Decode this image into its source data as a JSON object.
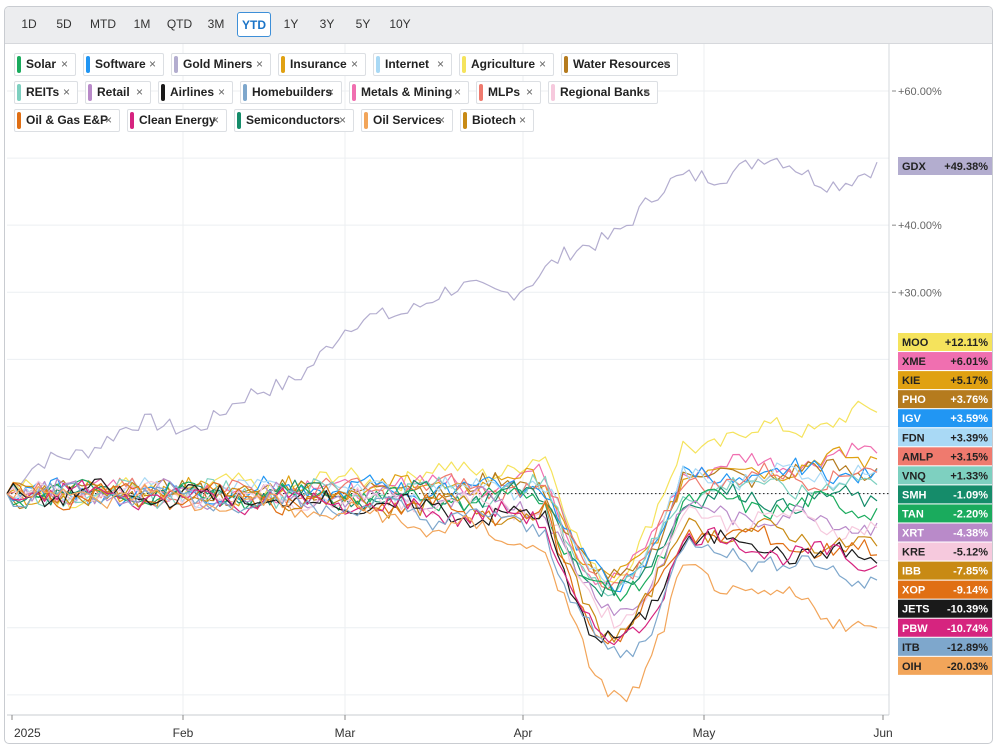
{
  "toolbar": {
    "timeframes": [
      "1D",
      "5D",
      "MTD",
      "1M",
      "QTD",
      "3M",
      "YTD",
      "1Y",
      "3Y",
      "5Y",
      "10Y"
    ],
    "active": "YTD"
  },
  "chart_data": {
    "type": "line",
    "x_labels": [
      "2025",
      "Feb",
      "Mar",
      "Apr",
      "May",
      "Jun"
    ],
    "y_ticks": [
      "+30.00%",
      "+40.00%",
      "+60.00%"
    ],
    "ylim": [
      -33,
      67
    ],
    "grid": true,
    "zero_line": "dotted",
    "filters": [
      {
        "name": "Solar",
        "color": "#1aab5d"
      },
      {
        "name": "Software",
        "color": "#2196f3"
      },
      {
        "name": "Gold Miners",
        "color": "#b3adcf"
      },
      {
        "name": "Insurance",
        "color": "#e0a112"
      },
      {
        "name": "Internet",
        "color": "#a9d9f5"
      },
      {
        "name": "Agriculture",
        "color": "#f5e35c"
      },
      {
        "name": "Water Resources",
        "color": "#b57b1e"
      },
      {
        "name": "REITs",
        "color": "#7ed0c0"
      },
      {
        "name": "Retail",
        "color": "#b98ac9"
      },
      {
        "name": "Airlines",
        "color": "#1a1a1a"
      },
      {
        "name": "Homebuilders",
        "color": "#7ea7cc"
      },
      {
        "name": "Metals & Mining",
        "color": "#f06fb0"
      },
      {
        "name": "MLPs",
        "color": "#ef7a6e"
      },
      {
        "name": "Regional Banks",
        "color": "#f6c9dd"
      },
      {
        "name": "Oil & Gas E&P",
        "color": "#e06f14"
      },
      {
        "name": "Clean Energy",
        "color": "#d6247f"
      },
      {
        "name": "Semiconductors",
        "color": "#158c6a"
      },
      {
        "name": "Oil Services",
        "color": "#f2a55a"
      },
      {
        "name": "Biotech",
        "color": "#c88a14"
      }
    ],
    "series": [
      {
        "ticker": "GDX",
        "label": "+49.38%",
        "value": 49.38,
        "color": "#b3adcf",
        "tag_text": "#222222"
      },
      {
        "ticker": "MOO",
        "label": "+12.11%",
        "value": 12.11,
        "color": "#f5e35c",
        "tag_text": "#222222"
      },
      {
        "ticker": "XME",
        "label": "+6.01%",
        "value": 6.01,
        "color": "#f06fb0",
        "tag_text": "#222222"
      },
      {
        "ticker": "KIE",
        "label": "+5.17%",
        "value": 5.17,
        "color": "#e0a112",
        "tag_text": "#222222"
      },
      {
        "ticker": "PHO",
        "label": "+3.76%",
        "value": 3.76,
        "color": "#b57b1e",
        "tag_text": "#ffffff"
      },
      {
        "ticker": "IGV",
        "label": "+3.59%",
        "value": 3.59,
        "color": "#2196f3",
        "tag_text": "#ffffff"
      },
      {
        "ticker": "FDN",
        "label": "+3.39%",
        "value": 3.39,
        "color": "#a9d9f5",
        "tag_text": "#222222"
      },
      {
        "ticker": "AMLP",
        "label": "+3.15%",
        "value": 3.15,
        "color": "#ef7a6e",
        "tag_text": "#222222"
      },
      {
        "ticker": "VNQ",
        "label": "+1.33%",
        "value": 1.33,
        "color": "#7ed0c0",
        "tag_text": "#222222"
      },
      {
        "ticker": "SMH",
        "label": "-1.09%",
        "value": -1.09,
        "color": "#158c6a",
        "tag_text": "#ffffff"
      },
      {
        "ticker": "TAN",
        "label": "-2.20%",
        "value": -2.2,
        "color": "#1aab5d",
        "tag_text": "#ffffff"
      },
      {
        "ticker": "XRT",
        "label": "-4.38%",
        "value": -4.38,
        "color": "#b98ac9",
        "tag_text": "#ffffff"
      },
      {
        "ticker": "KRE",
        "label": "-5.12%",
        "value": -5.12,
        "color": "#f6c9dd",
        "tag_text": "#222222"
      },
      {
        "ticker": "IBB",
        "label": "-7.85%",
        "value": -7.85,
        "color": "#c88a14",
        "tag_text": "#ffffff"
      },
      {
        "ticker": "XOP",
        "label": "-9.14%",
        "value": -9.14,
        "color": "#e06f14",
        "tag_text": "#ffffff"
      },
      {
        "ticker": "JETS",
        "label": "-10.39%",
        "value": -10.39,
        "color": "#1a1a1a",
        "tag_text": "#ffffff"
      },
      {
        "ticker": "PBW",
        "label": "-10.74%",
        "value": -10.74,
        "color": "#d6247f",
        "tag_text": "#ffffff"
      },
      {
        "ticker": "ITB",
        "label": "-12.89%",
        "value": -12.89,
        "color": "#7ea7cc",
        "tag_text": "#222222"
      },
      {
        "ticker": "OIH",
        "label": "-20.03%",
        "value": -20.03,
        "color": "#f2a55a",
        "tag_text": "#222222"
      }
    ]
  }
}
